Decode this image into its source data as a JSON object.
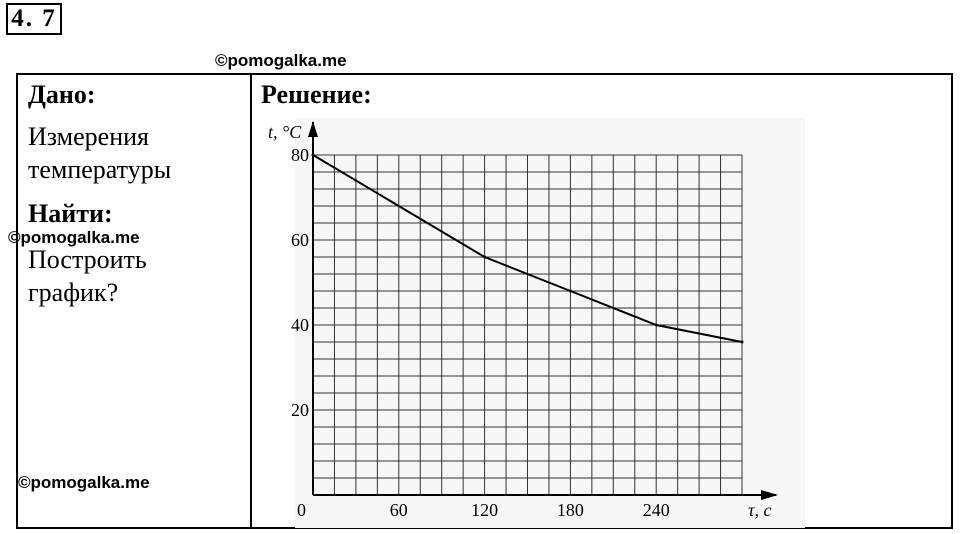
{
  "problem_number": "4. 7",
  "watermark": "©pomogalka.me",
  "given": {
    "heading": "Дано:",
    "text_line1": "Измерения",
    "text_line2": "температуры"
  },
  "find": {
    "heading": "Найти:",
    "text_line1": "Построить",
    "text_line2": "график?"
  },
  "solution": {
    "heading": "Решение:"
  },
  "chart_data": {
    "type": "line",
    "x": [
      0,
      120,
      180,
      240,
      300
    ],
    "series": [
      {
        "values": [
          80,
          56,
          48,
          40,
          36
        ]
      }
    ],
    "xlabel": "τ, с",
    "ylabel": "t, °C",
    "xlim": [
      0,
      300
    ],
    "ylim": [
      0,
      80
    ],
    "x_ticks": [
      0,
      60,
      120,
      180,
      240
    ],
    "y_ticks": [
      20,
      40,
      60,
      80
    ],
    "origin_label": "0",
    "grid": true,
    "line_color": "#000000",
    "grid_color": "#333333",
    "paper_color": "#f7f7f7"
  }
}
